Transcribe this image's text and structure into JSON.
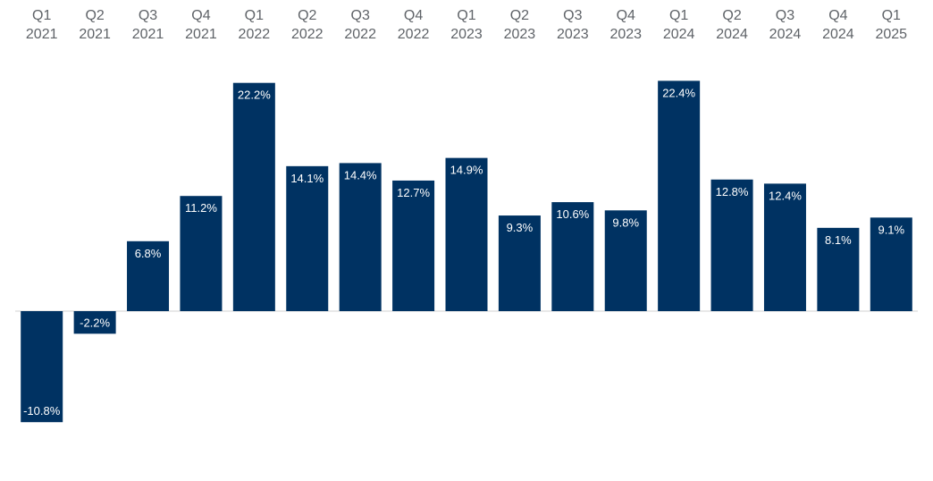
{
  "chart_data": {
    "type": "bar",
    "title": "",
    "xlabel": "",
    "ylabel": "",
    "categories": [
      [
        "Q1",
        "2021"
      ],
      [
        "Q2",
        "2021"
      ],
      [
        "Q3",
        "2021"
      ],
      [
        "Q4",
        "2021"
      ],
      [
        "Q1",
        "2022"
      ],
      [
        "Q2",
        "2022"
      ],
      [
        "Q3",
        "2022"
      ],
      [
        "Q4",
        "2022"
      ],
      [
        "Q1",
        "2023"
      ],
      [
        "Q2",
        "2023"
      ],
      [
        "Q3",
        "2023"
      ],
      [
        "Q4",
        "2023"
      ],
      [
        "Q1",
        "2024"
      ],
      [
        "Q2",
        "2024"
      ],
      [
        "Q3",
        "2024"
      ],
      [
        "Q4",
        "2024"
      ],
      [
        "Q1",
        "2025"
      ]
    ],
    "values": [
      -10.8,
      -2.2,
      6.8,
      11.2,
      22.2,
      14.1,
      14.4,
      12.7,
      14.9,
      9.3,
      10.6,
      9.8,
      22.4,
      12.8,
      12.4,
      8.1,
      9.1
    ],
    "labels": [
      "-10.8%",
      "-2.2%",
      "6.8%",
      "11.2%",
      "22.2%",
      "14.1%",
      "14.4%",
      "12.7%",
      "14.9%",
      "9.3%",
      "10.6%",
      "9.8%",
      "22.4%",
      "12.8%",
      "12.4%",
      "8.1%",
      "9.1%"
    ],
    "ylim": [
      -15.5,
      25
    ],
    "grid": false,
    "legend": "none",
    "colors": {
      "bar": "#003262",
      "baseline": "#d0d0d0",
      "tick_text": "#5f6368",
      "label_text": "#ffffff"
    }
  }
}
